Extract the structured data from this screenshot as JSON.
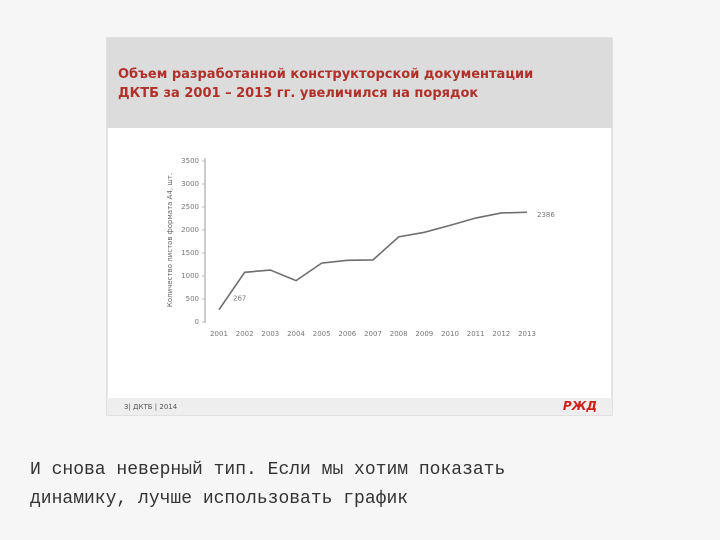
{
  "slide": {
    "title_lines": [
      "Объем разработанной конструкторской документации",
      "ДКТБ за 2001 – 2013 гг. увеличился на порядок"
    ],
    "footer": "3| ДКТБ | 2014",
    "logo": "РЖД"
  },
  "chart_data": {
    "type": "line",
    "y_label": "Количество листов формата А4, шт.",
    "categories": [
      "2001",
      "2002",
      "2003",
      "2004",
      "2005",
      "2006",
      "2007",
      "2008",
      "2009",
      "2010",
      "2011",
      "2012",
      "2013"
    ],
    "values": [
      267,
      1080,
      1130,
      900,
      1280,
      1340,
      1350,
      1850,
      1950,
      2100,
      2260,
      2370,
      2386
    ],
    "color": "#6e6e6e",
    "ylim": [
      0,
      3500
    ],
    "yticks": [
      0,
      500,
      1000,
      1500,
      2000,
      2500,
      3000,
      3500
    ],
    "grid": false
  },
  "caption": {
    "lines": [
      "И снова неверный тип. Если мы хотим показать",
      "динамику, лучше использовать график"
    ]
  }
}
